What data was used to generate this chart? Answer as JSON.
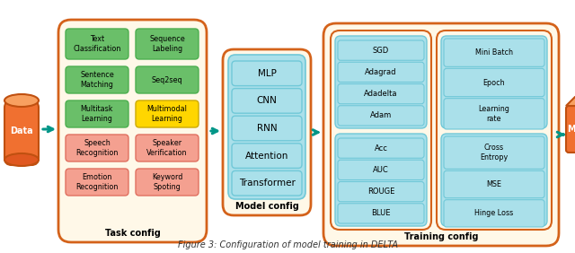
{
  "figure_caption": "Figure 3: Configuration of model training in DELTA",
  "bg_color": "#ffffff",
  "cream_bg": "#fff8e8",
  "orange_border": "#d4621a",
  "teal_arrow": "#009688",
  "green_box": "#6abf69",
  "green_edge": "#4caf50",
  "salmon_box": "#f4a090",
  "salmon_edge": "#e07060",
  "yellow_box": "#ffd600",
  "yellow_edge": "#ccaa00",
  "blue_inner": "#aae0ea",
  "blue_edge": "#70c8d8",
  "orange_main": "#f07030",
  "orange_dark": "#c05010",
  "orange_light": "#f8a060",
  "task_config_label": "Task config",
  "model_config_label": "Model config",
  "training_config_label": "Training config",
  "data_label": "Data",
  "model_label": "Model"
}
